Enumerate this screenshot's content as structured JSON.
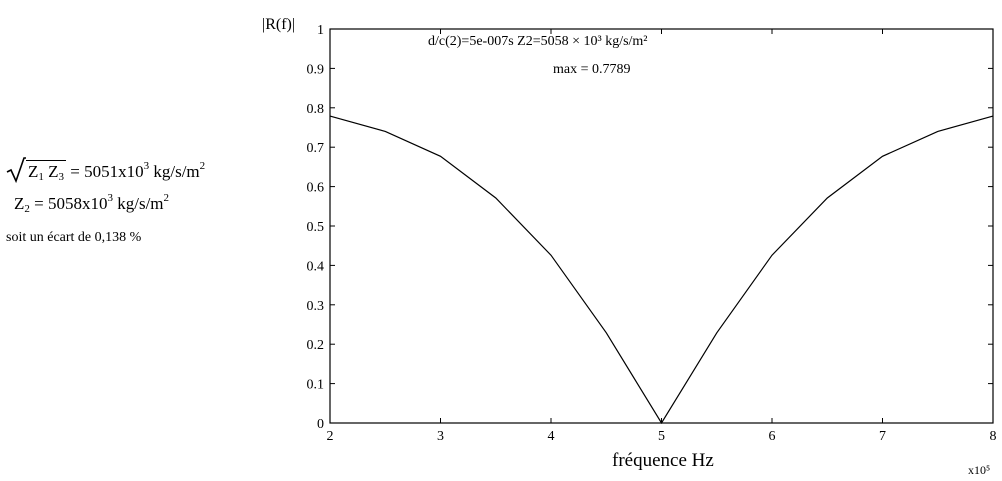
{
  "side_text": {
    "sqrt_label": [
      "Z",
      "1",
      "Z",
      "3"
    ],
    "sqrt_value": "= 5051x10",
    "sqrt_exp": "3",
    "sqrt_unit": "kg/s/m",
    "sqrt_unit_exp": "2",
    "z2_name": "Z",
    "z2_sub": "2",
    "z2_value": "= 5058x10",
    "z2_exp": "3",
    "z2_unit": "kg/s/m",
    "z2_unit_exp": "2",
    "ecart": "soit un écart de 0,138 %"
  },
  "chart_data": {
    "type": "line",
    "ylabel": "|R(f)|",
    "xlabel": "fréquence  Hz",
    "x_multiplier": "x10⁵",
    "annotation_line1": "d/c(2)=5e-007s    Z2=5058 × 10³ kg/s/m²",
    "annotation_line2": "max =   0.7789",
    "xlim": [
      2,
      8
    ],
    "ylim": [
      0,
      1
    ],
    "xticks": [
      "2",
      "3",
      "4",
      "5",
      "6",
      "7",
      "8"
    ],
    "yticks": [
      "0",
      "0.1",
      "0.2",
      "0.3",
      "0.4",
      "0.5",
      "0.6",
      "0.7",
      "0.8",
      "0.9",
      "1"
    ],
    "series": [
      {
        "color": "#000000",
        "x": [
          2.0,
          2.5,
          3.0,
          3.5,
          4.0,
          4.5,
          5.0,
          5.5,
          6.0,
          6.5,
          7.0,
          7.5,
          8.0
        ],
        "y": [
          0.779,
          0.74,
          0.677,
          0.571,
          0.426,
          0.229,
          0.0,
          0.229,
          0.426,
          0.571,
          0.677,
          0.74,
          0.779
        ]
      }
    ],
    "grid": false
  }
}
